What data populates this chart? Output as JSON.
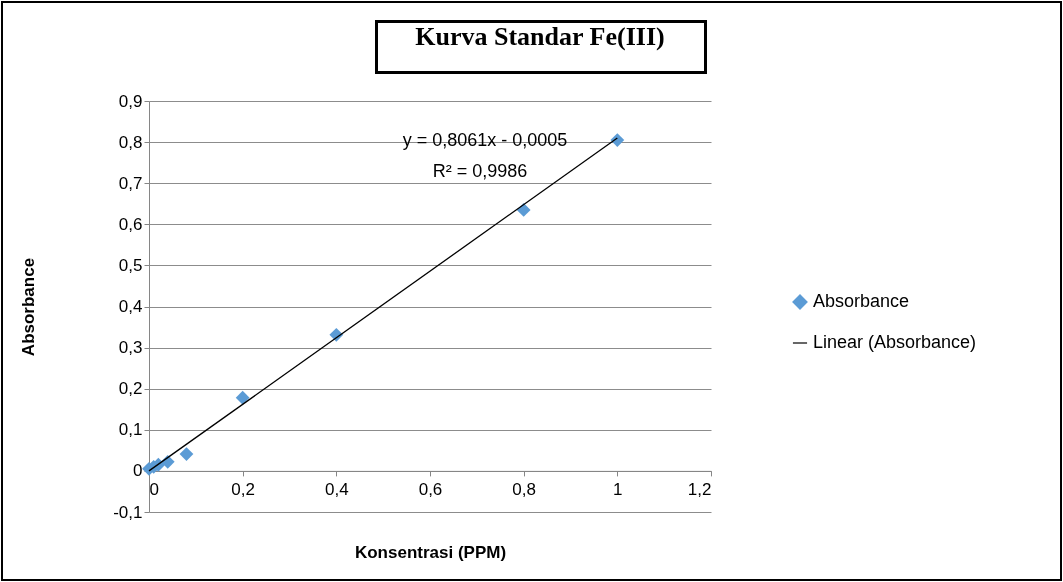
{
  "chart_data": {
    "type": "scatter",
    "title": "Kurva Standar Fe(III)",
    "xlabel": "Konsentrasi (PPM)",
    "ylabel": "Absorbance",
    "annotations": [
      "y = 0,8061x - 0,0005",
      "R² = 0,9986"
    ],
    "series": [
      {
        "name": "Absorbance",
        "color": "#5b9bd5",
        "x": [
          0,
          0.01,
          0.02,
          0.04,
          0.08,
          0.2,
          0.4,
          0.8,
          1
        ],
        "values": [
          0.005,
          0.01,
          0.015,
          0.022,
          0.041,
          0.178,
          0.331,
          0.635,
          0.805
        ]
      },
      {
        "name": "Linear (Absorbance)",
        "type": "line",
        "color": "#000000",
        "x": [
          0,
          1
        ],
        "values": [
          0,
          0.81
        ],
        "marker": "none"
      }
    ],
    "marker": "diamond",
    "legend": "right",
    "grid": "y",
    "xlim": [
      0,
      1.2
    ],
    "ylim": [
      -0.1,
      0.9
    ],
    "xticks": [
      0,
      {
        "value": 0.2,
        "label": "0,2"
      },
      {
        "value": 0.4,
        "label": "0,4"
      },
      {
        "value": 0.6,
        "label": "0,6"
      },
      {
        "value": 0.8,
        "label": "0,8"
      },
      1,
      {
        "value": 1.2,
        "label": "1,2"
      }
    ],
    "yticks": [
      {
        "value": -0.1,
        "label": "-0,1"
      },
      0,
      {
        "value": 0.1,
        "label": "0,1"
      },
      {
        "value": 0.2,
        "label": "0,2"
      },
      {
        "value": 0.3,
        "label": "0,3"
      },
      {
        "value": 0.4,
        "label": "0,4"
      },
      {
        "value": 0.5,
        "label": "0,5"
      },
      {
        "value": 0.6,
        "label": "0,6"
      },
      {
        "value": 0.7,
        "label": "0,7"
      },
      {
        "value": 0.8,
        "label": "0,8"
      },
      {
        "value": 0.9,
        "label": "0,9"
      }
    ]
  }
}
